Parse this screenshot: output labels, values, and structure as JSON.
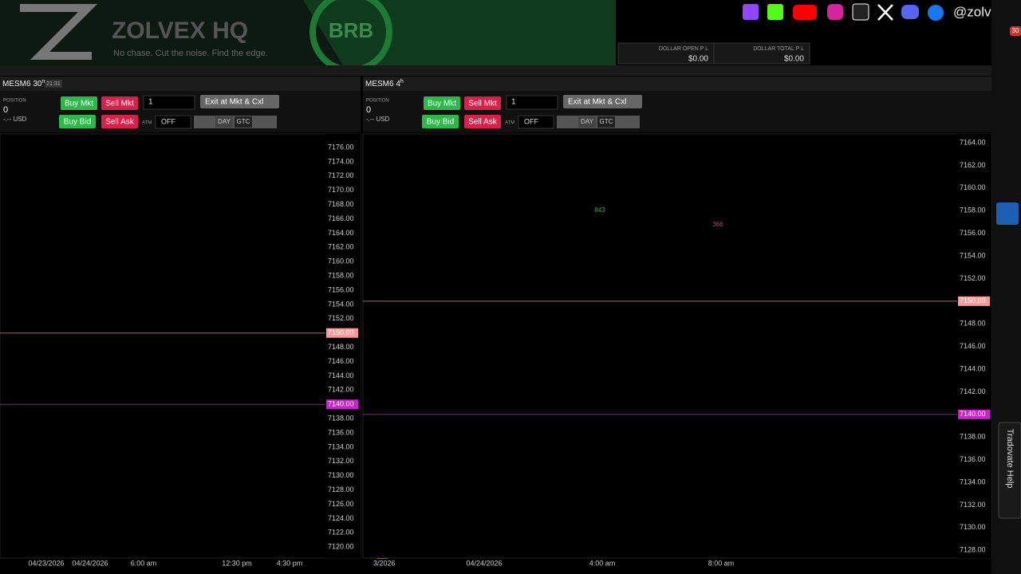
{
  "header": {
    "brand": "ZOLVEX HQ",
    "tagline": "No chase. Cut the noise. Find the edge.",
    "badge": "BRB",
    "handle": "@zolvexhq",
    "notification_count": "30"
  },
  "pnl": [
    {
      "label": "DOLLAR OPEN P L",
      "value": "$0.00"
    },
    {
      "label": "DOLLAR TOTAL P L",
      "value": "$0.00"
    }
  ],
  "panels": [
    {
      "symbol": "MESM6 30",
      "interval_unit": "m",
      "time": "21:31",
      "position_label": "POSITION",
      "position": "0",
      "pnl": "-.-- USD",
      "buttons": [
        "Buy Mkt",
        "Sell Mkt",
        "Buy Bid",
        "Sell Ask"
      ],
      "quantity": "1",
      "exit": "Exit at Mkt & Cxl",
      "atm_label": "ATM",
      "atm": "OFF",
      "tif": [
        "DAY",
        "GTC"
      ],
      "price_ticks": [
        "7176.00",
        "7174.00",
        "7172.00",
        "7170.00",
        "7168.00",
        "7166.00",
        "7164.00",
        "7162.00",
        "7160.00",
        "7158.00",
        "7156.00",
        "7154.00",
        "7152.00",
        "7150.00",
        "7148.00",
        "7146.00",
        "7144.00",
        "7142.00",
        "7140.00",
        "7138.00",
        "7136.00",
        "7134.00",
        "7132.00",
        "7130.00",
        "7128.00",
        "7126.00",
        "7124.00",
        "7122.00",
        "7120.00"
      ],
      "price_markers": [
        "7150.00",
        "7140.00"
      ],
      "time_labels": [
        "04/23/2026",
        "04/24/2026",
        "6:00 am",
        "12:30 pm",
        "4:30 pm"
      ],
      "annotations": []
    },
    {
      "symbol": "MESM6 4",
      "interval_unit": "h",
      "position_label": "POSITION",
      "position": "0",
      "pnl": "-.-- USD",
      "buttons": [
        "Buy Mkt",
        "Sell Mkt",
        "Buy Bid",
        "Sell Ask"
      ],
      "quantity": "1",
      "exit": "Exit at Mkt & Cxl",
      "atm_label": "ATM",
      "atm": "OFF",
      "tif": [
        "DAY",
        "GTC"
      ],
      "price_ticks": [
        "7164.00",
        "7162.00",
        "7160.00",
        "7158.00",
        "7156.00",
        "7154.00",
        "7152.00",
        "7150.00",
        "7148.00",
        "7146.00",
        "7144.00",
        "7142.00",
        "7140.00",
        "7138.00",
        "7136.00",
        "7134.00",
        "7132.00",
        "7130.00",
        "7128.00"
      ],
      "price_markers": [
        "7150.00",
        "7140.00"
      ],
      "time_labels": [
        "3/2026",
        "04/24/2026",
        "4:00 am",
        "8:00 am"
      ],
      "annotations": [
        "843",
        "366"
      ]
    }
  ],
  "help_tab": "Tradovate Help"
}
